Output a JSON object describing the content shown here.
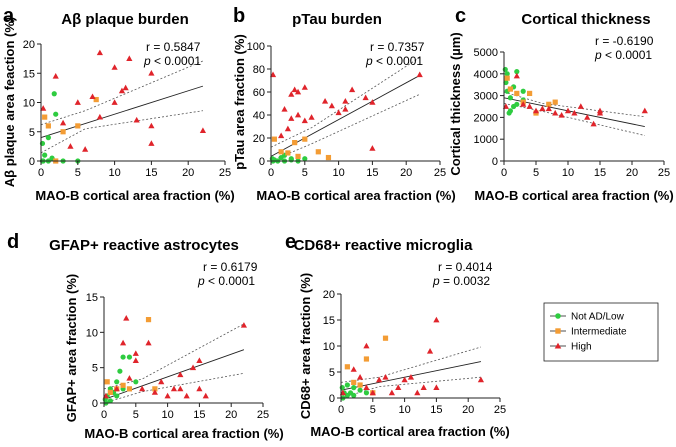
{
  "legend": {
    "items": [
      {
        "label": "Not AD/Low",
        "color": "#2ecc40",
        "shape": "circle"
      },
      {
        "label": "Intermediate",
        "color": "#f39c34",
        "shape": "square"
      },
      {
        "label": "High",
        "color": "#e0242b",
        "shape": "triangle"
      }
    ]
  },
  "chart_data": [
    {
      "panel": "a",
      "type": "scatter",
      "title": "Aβ plaque burden",
      "xlabel": "MAO-B cortical area fraction (%)",
      "ylabel": "Aβ plaque area feaction (%)",
      "xlim": [
        0,
        25
      ],
      "ylim": [
        0,
        20
      ],
      "xticks": [
        0,
        5,
        10,
        15,
        20,
        25
      ],
      "yticks": [
        0,
        5,
        10,
        15,
        20
      ],
      "stat_r": "r = 0.5847",
      "stat_p_sym": "p",
      "stat_p_rest": " < 0.0001",
      "fit": {
        "slope": 0.4,
        "intercept": 4.0
      },
      "band": {
        "lower": [
          [
            0,
            1.4
          ],
          [
            6,
            5.5
          ],
          [
            22,
            8.6
          ]
        ],
        "upper": [
          [
            0,
            6.2
          ],
          [
            6,
            8.6
          ],
          [
            22,
            17.1
          ]
        ]
      },
      "series": [
        {
          "name": "Not AD/Low",
          "points": [
            [
              0.2,
              3
            ],
            [
              0.5,
              1
            ],
            [
              0.3,
              0
            ],
            [
              1,
              0
            ],
            [
              1.5,
              0.5
            ],
            [
              2,
              8
            ],
            [
              1.8,
              11.5
            ],
            [
              1,
              4
            ],
            [
              0.2,
              0
            ],
            [
              3,
              0
            ],
            [
              5,
              0
            ]
          ]
        },
        {
          "name": "Intermediate",
          "points": [
            [
              0.5,
              7.5
            ],
            [
              1,
              6
            ],
            [
              2,
              0
            ],
            [
              3,
              5
            ],
            [
              5,
              6
            ],
            [
              7.5,
              10.5
            ]
          ]
        },
        {
          "name": "High",
          "points": [
            [
              0.3,
              9
            ],
            [
              2,
              14.5
            ],
            [
              3,
              6.5
            ],
            [
              4,
              2.5
            ],
            [
              5,
              10
            ],
            [
              6,
              2
            ],
            [
              7,
              11
            ],
            [
              8,
              18.5
            ],
            [
              8,
              7.5
            ],
            [
              10,
              16
            ],
            [
              10,
              10
            ],
            [
              11,
              12
            ],
            [
              11.5,
              12.5
            ],
            [
              12,
              17.5
            ],
            [
              13,
              7
            ],
            [
              15,
              6
            ],
            [
              15,
              15
            ],
            [
              15,
              3
            ],
            [
              22,
              5.2
            ]
          ]
        }
      ]
    },
    {
      "panel": "b",
      "type": "scatter",
      "title": "pTau burden",
      "xlabel": "MAO-B cortical area fraction (%)",
      "ylabel": "pTau area fraction (%)",
      "xlim": [
        0,
        25
      ],
      "ylim": [
        0,
        100
      ],
      "xticks": [
        0,
        5,
        10,
        15,
        20,
        25
      ],
      "yticks": [
        0,
        20,
        40,
        60,
        80,
        100
      ],
      "stat_r": "r = 0.7357",
      "stat_p_sym": "p",
      "stat_p_rest": " < 0.0001",
      "fit": {
        "slope": 3.2,
        "intercept": 4.0
      },
      "band": {
        "lower": [
          [
            0,
            -3
          ],
          [
            6,
            15
          ],
          [
            22,
            58
          ]
        ],
        "upper": [
          [
            0,
            12
          ],
          [
            6,
            29
          ],
          [
            22,
            90
          ]
        ]
      },
      "series": [
        {
          "name": "Not AD/Low",
          "points": [
            [
              0.2,
              2
            ],
            [
              0.5,
              1
            ],
            [
              1,
              0
            ],
            [
              1.5,
              3
            ],
            [
              2,
              0
            ],
            [
              2,
              5
            ],
            [
              3,
              2
            ],
            [
              3,
              1
            ],
            [
              4,
              0
            ],
            [
              5,
              2
            ],
            [
              0.3,
              0
            ]
          ]
        },
        {
          "name": "Intermediate",
          "points": [
            [
              0.5,
              19
            ],
            [
              1.5,
              8
            ],
            [
              2.5,
              7
            ],
            [
              3.5,
              16
            ],
            [
              4,
              4
            ],
            [
              5,
              19
            ],
            [
              7,
              8
            ],
            [
              8.5,
              3
            ]
          ]
        },
        {
          "name": "High",
          "points": [
            [
              0.3,
              75
            ],
            [
              1.5,
              22
            ],
            [
              2,
              45
            ],
            [
              2.5,
              28
            ],
            [
              3,
              58
            ],
            [
              3,
              37
            ],
            [
              3.5,
              62
            ],
            [
              4,
              60
            ],
            [
              4,
              40
            ],
            [
              5,
              64
            ],
            [
              5,
              35
            ],
            [
              6,
              38
            ],
            [
              8,
              52
            ],
            [
              9,
              48
            ],
            [
              10,
              42
            ],
            [
              11,
              45
            ],
            [
              11,
              52
            ],
            [
              12,
              62
            ],
            [
              14,
              55
            ],
            [
              15,
              11
            ],
            [
              15,
              51
            ],
            [
              22,
              75
            ]
          ]
        }
      ]
    },
    {
      "panel": "c",
      "type": "scatter",
      "title": "Cortical thickness",
      "xlabel": "MAO-B cortical area fraction (%)",
      "ylabel": "Cortical thickness (µm)",
      "xlim": [
        0,
        25
      ],
      "ylim": [
        0,
        5000
      ],
      "xticks": [
        0,
        5,
        10,
        15,
        20,
        25
      ],
      "yticks": [
        0,
        1000,
        2000,
        3000,
        4000,
        5000
      ],
      "stat_r": "r = -0.6190",
      "stat_p_sym": "p",
      "stat_p_rest": " < 0.0001",
      "fit": {
        "slope": -60,
        "intercept": 2900
      },
      "band": {
        "lower": [
          [
            0,
            2640
          ],
          [
            6,
            2280
          ],
          [
            22,
            1170
          ]
        ],
        "upper": [
          [
            0,
            3160
          ],
          [
            6,
            2640
          ],
          [
            22,
            2030
          ]
        ]
      },
      "series": [
        {
          "name": "Not AD/Low",
          "points": [
            [
              0.2,
              4200
            ],
            [
              0.5,
              4000
            ],
            [
              0.3,
              3600
            ],
            [
              0.5,
              3200
            ],
            [
              1,
              2900
            ],
            [
              1.5,
              3400
            ],
            [
              2,
              4100
            ],
            [
              1,
              2300
            ],
            [
              0.8,
              2200
            ],
            [
              2,
              2600
            ],
            [
              3,
              2800
            ],
            [
              3,
              3200
            ],
            [
              1.5,
              2500
            ]
          ]
        },
        {
          "name": "Intermediate",
          "points": [
            [
              0.5,
              3800
            ],
            [
              1,
              3300
            ],
            [
              2,
              3100
            ],
            [
              3,
              2700
            ],
            [
              4,
              3100
            ],
            [
              7,
              2600
            ],
            [
              8,
              2700
            ],
            [
              5,
              2200
            ]
          ]
        },
        {
          "name": "High",
          "points": [
            [
              0.3,
              2500
            ],
            [
              2,
              3900
            ],
            [
              3,
              2600
            ],
            [
              4,
              2500
            ],
            [
              5,
              2300
            ],
            [
              6,
              2400
            ],
            [
              7,
              2400
            ],
            [
              8,
              2200
            ],
            [
              9,
              2100
            ],
            [
              10,
              2300
            ],
            [
              11,
              2200
            ],
            [
              12,
              2500
            ],
            [
              13,
              2000
            ],
            [
              14,
              1700
            ],
            [
              15,
              2200
            ],
            [
              15,
              2300
            ],
            [
              22,
              2300
            ]
          ]
        }
      ]
    },
    {
      "panel": "d",
      "type": "scatter",
      "title": "GFAP+ reactive astrocytes",
      "xlabel": "MAO-B cortical area fraction (%)",
      "ylabel": "GFAP+ area fraction (%)",
      "xlim": [
        0,
        25
      ],
      "ylim": [
        0,
        15
      ],
      "xticks": [
        0,
        5,
        10,
        15,
        20,
        25
      ],
      "yticks": [
        0,
        5,
        10,
        15
      ],
      "stat_r": "r = 0.6179",
      "stat_p_sym": "p",
      "stat_p_rest": " < 0.0001",
      "fit": {
        "slope": 0.32,
        "intercept": 0.5
      },
      "band": {
        "lower": [
          [
            0,
            -0.7
          ],
          [
            6,
            1.6
          ],
          [
            22,
            4.2
          ]
        ],
        "upper": [
          [
            0,
            2.0
          ],
          [
            6,
            3.4
          ],
          [
            22,
            11.2
          ]
        ]
      },
      "series": [
        {
          "name": "Not AD/Low",
          "points": [
            [
              0.2,
              0.5
            ],
            [
              0.5,
              1
            ],
            [
              1,
              2
            ],
            [
              1.5,
              1.5
            ],
            [
              2,
              3
            ],
            [
              2.5,
              4.5
            ],
            [
              3,
              6.5
            ],
            [
              3,
              2
            ],
            [
              4,
              6.5
            ],
            [
              0.3,
              0
            ],
            [
              1,
              0.3
            ],
            [
              2,
              1
            ],
            [
              5,
              3
            ]
          ]
        },
        {
          "name": "Intermediate",
          "points": [
            [
              0.5,
              3
            ],
            [
              1,
              1.5
            ],
            [
              2,
              2
            ],
            [
              3,
              2.5
            ],
            [
              4,
              2
            ],
            [
              7,
              11.8
            ],
            [
              8,
              2
            ]
          ]
        },
        {
          "name": "High",
          "points": [
            [
              0.3,
              1
            ],
            [
              2,
              2
            ],
            [
              3,
              8.5
            ],
            [
              3.5,
              12
            ],
            [
              4,
              3.5
            ],
            [
              5,
              7
            ],
            [
              5,
              6
            ],
            [
              6,
              2
            ],
            [
              7,
              8.5
            ],
            [
              8,
              1.5
            ],
            [
              9,
              3
            ],
            [
              10,
              1
            ],
            [
              11,
              2
            ],
            [
              12,
              4
            ],
            [
              12,
              2
            ],
            [
              13,
              1
            ],
            [
              14,
              5
            ],
            [
              15,
              6
            ],
            [
              15,
              2
            ],
            [
              16,
              1
            ],
            [
              22,
              11
            ]
          ]
        }
      ]
    },
    {
      "panel": "e",
      "type": "scatter",
      "title": "CD68+ reactive microglia",
      "xlabel": "MAO-B cortical area fraction (%)",
      "ylabel": "CD68+ area fraction (%)",
      "xlim": [
        0,
        25
      ],
      "ylim": [
        0,
        20
      ],
      "xticks": [
        0,
        5,
        10,
        15,
        20,
        25
      ],
      "yticks": [
        0,
        5,
        10,
        15,
        20
      ],
      "stat_r": "r = 0.4014",
      "stat_p_sym": "p",
      "stat_p_rest": " = 0.0032",
      "fit": {
        "slope": 0.25,
        "intercept": 1.5
      },
      "band": {
        "lower": [
          [
            0,
            0
          ],
          [
            6,
            2.2
          ],
          [
            22,
            4.0
          ]
        ],
        "upper": [
          [
            0,
            3.0
          ],
          [
            6,
            4.0
          ],
          [
            22,
            9.8
          ]
        ]
      },
      "series": [
        {
          "name": "Not AD/Low",
          "points": [
            [
              0.2,
              2
            ],
            [
              0.5,
              1
            ],
            [
              1,
              0.5
            ],
            [
              1,
              2.5
            ],
            [
              1.5,
              1
            ],
            [
              2,
              0.5
            ],
            [
              2,
              2
            ],
            [
              3,
              1.5
            ],
            [
              0.3,
              0
            ],
            [
              4,
              1
            ]
          ]
        },
        {
          "name": "Intermediate",
          "points": [
            [
              1,
              6
            ],
            [
              2,
              3
            ],
            [
              3,
              2.5
            ],
            [
              4,
              7.5
            ],
            [
              7,
              11.5
            ],
            [
              5,
              1
            ]
          ]
        },
        {
          "name": "High",
          "points": [
            [
              0.3,
              1
            ],
            [
              2,
              5.5
            ],
            [
              3,
              4
            ],
            [
              4,
              10
            ],
            [
              4,
              2
            ],
            [
              5,
              1
            ],
            [
              6,
              3.5
            ],
            [
              7,
              4
            ],
            [
              8,
              1
            ],
            [
              9,
              2
            ],
            [
              10,
              3.5
            ],
            [
              11,
              4
            ],
            [
              12,
              1
            ],
            [
              13,
              2
            ],
            [
              14,
              9
            ],
            [
              15,
              15
            ],
            [
              15,
              2
            ],
            [
              22,
              3.5
            ]
          ]
        }
      ]
    }
  ]
}
